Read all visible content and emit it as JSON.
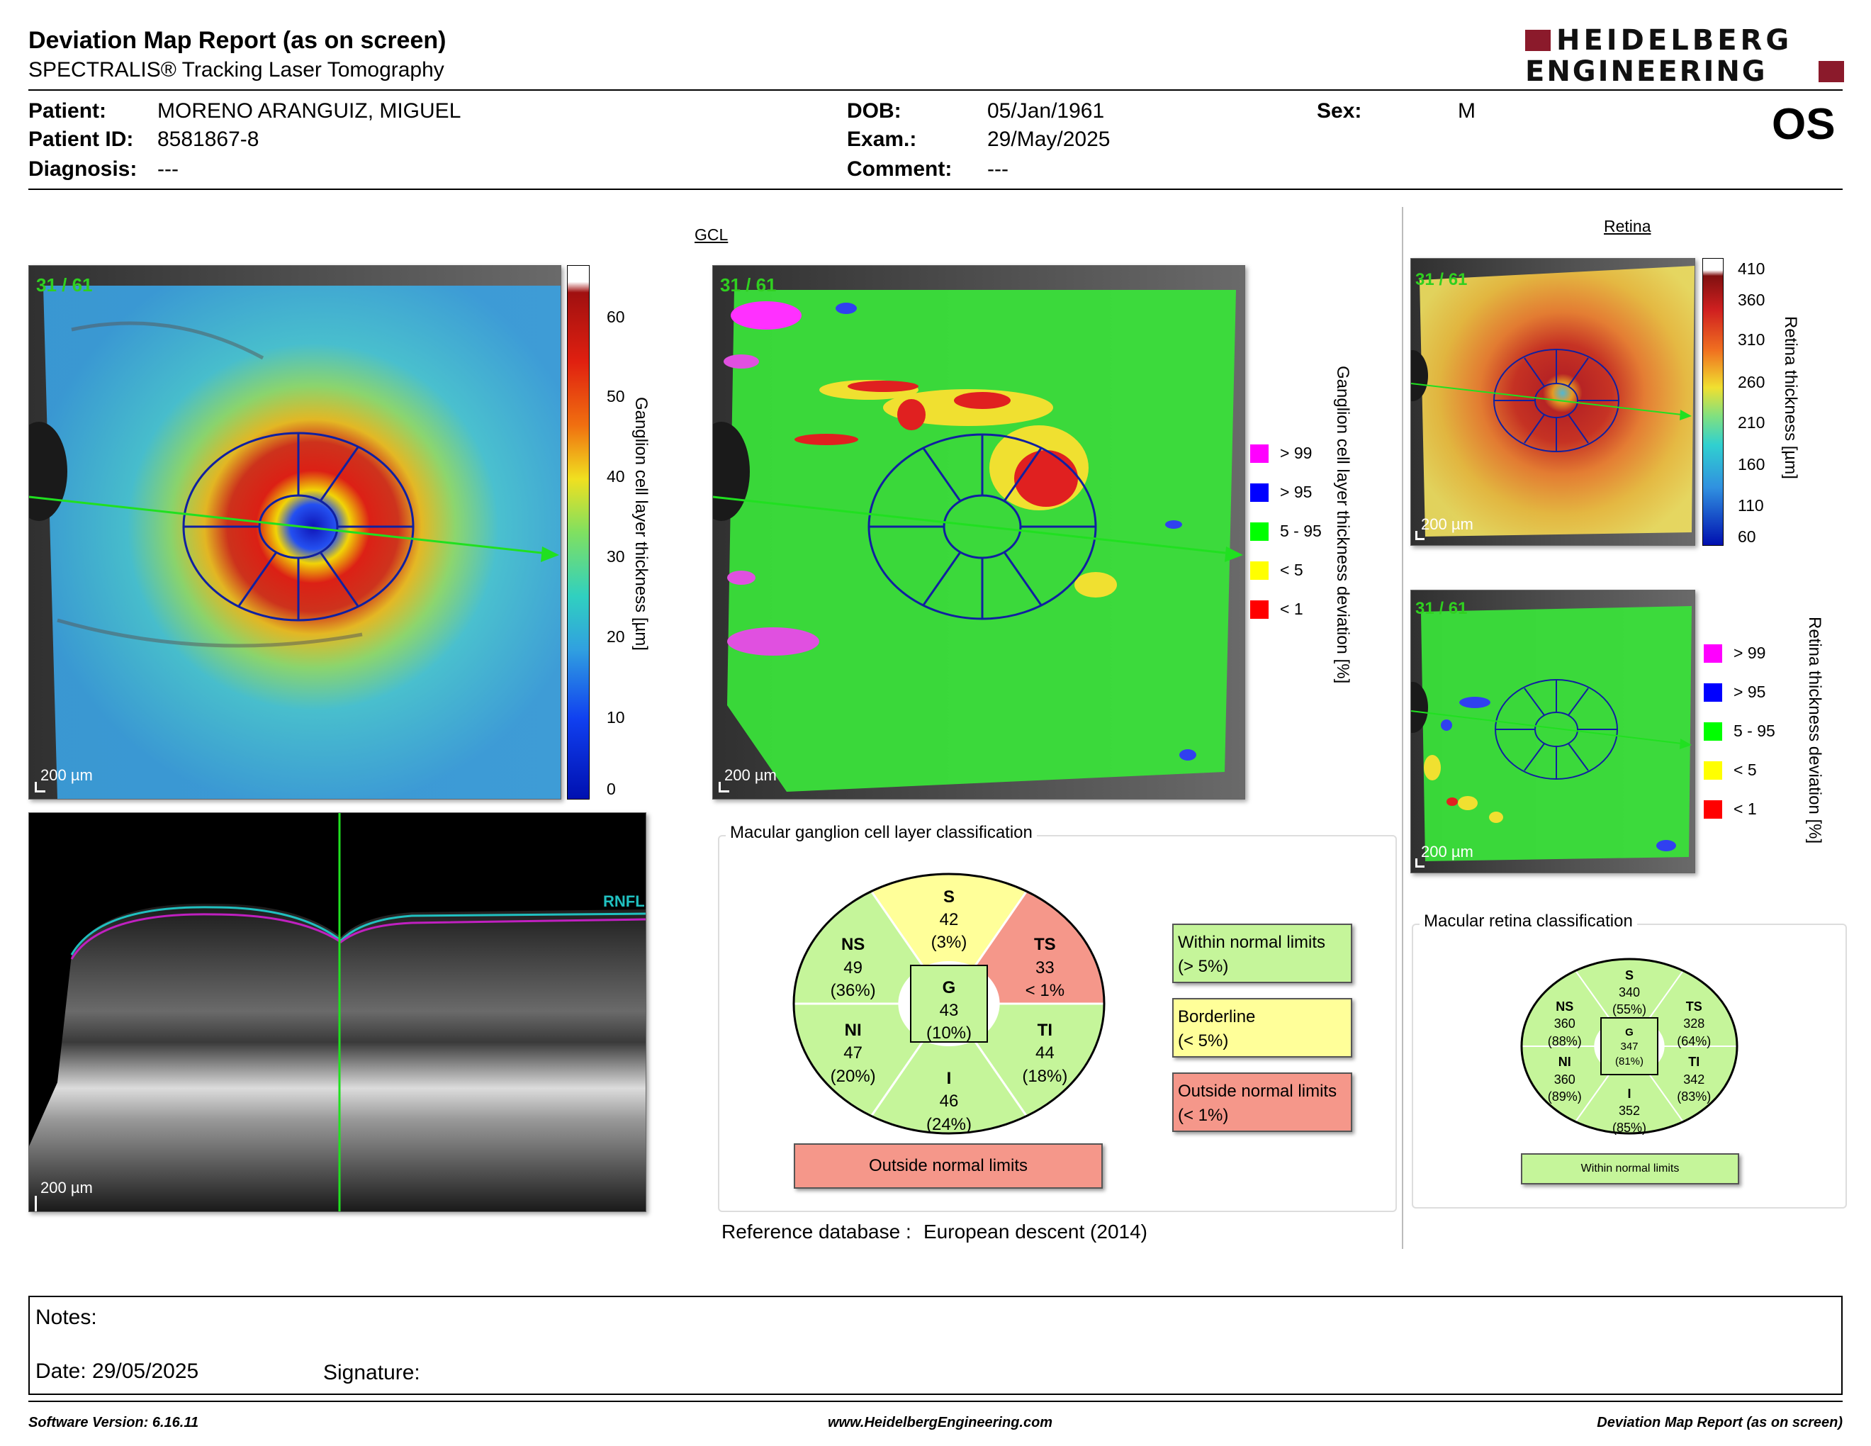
{
  "header": {
    "title": "Deviation Map Report (as on screen)",
    "subtitle": "SPECTRALIS® Tracking Laser Tomography",
    "logo_line1": "HEIDELBERG",
    "logo_line2": "ENGINEERING"
  },
  "patient": {
    "patient_label": "Patient:",
    "patient_value": "MORENO ARANGUIZ, MIGUEL",
    "id_label": "Patient ID:",
    "id_value": "8581867-8",
    "diagnosis_label": "Diagnosis:",
    "diagnosis_value": "---",
    "dob_label": "DOB:",
    "dob_value": "05/Jan/1961",
    "exam_label": "Exam.:",
    "exam_value": "29/May/2025",
    "comment_label": "Comment:",
    "comment_value": "---",
    "sex_label": "Sex:",
    "sex_value": "M",
    "eye": "OS"
  },
  "gcl_section": "GCL",
  "retina_section": "Retina",
  "scan_index": "31 / 61",
  "scale_text": "200 µm",
  "rnfl_label": "RNFL",
  "gcl_thickness_scale": {
    "title": "Ganglion cell layer thickness [µm]",
    "ticks": [
      "60",
      "50",
      "40",
      "30",
      "20",
      "10",
      "0"
    ]
  },
  "gcl_deviation_scale": {
    "title": "Ganglion cell layer thickness deviation [%]"
  },
  "retina_thickness_scale": {
    "title": "Retina thickness [µm]",
    "ticks": [
      "410",
      "360",
      "310",
      "260",
      "210",
      "160",
      "110",
      "60"
    ]
  },
  "retina_deviation_scale": {
    "title": "Retina thickness deviation [%]"
  },
  "deviation_legend": [
    {
      "label": "> 99",
      "color": "#ff00ff"
    },
    {
      "label": "> 95",
      "color": "#0000ff"
    },
    {
      "label": "5 - 95",
      "color": "#00ff00"
    },
    {
      "label": "< 5",
      "color": "#ffff00"
    },
    {
      "label": "< 1",
      "color": "#ff0000"
    }
  ],
  "gcl_classification": {
    "title": "Macular ganglion cell layer classification",
    "sectors": {
      "S": {
        "name": "S",
        "value": "42",
        "pct": "(3%)",
        "color": "#ffff99"
      },
      "TS": {
        "name": "TS",
        "value": "33",
        "pct": "< 1%",
        "color": "#f5978a"
      },
      "NS": {
        "name": "NS",
        "value": "49",
        "pct": "(36%)",
        "color": "#c5f59a"
      },
      "NI": {
        "name": "NI",
        "value": "47",
        "pct": "(20%)",
        "color": "#c5f59a"
      },
      "TI": {
        "name": "TI",
        "value": "44",
        "pct": "(18%)",
        "color": "#c5f59a"
      },
      "I": {
        "name": "I",
        "value": "46",
        "pct": "(24%)",
        "color": "#c5f59a"
      },
      "G": {
        "name": "G",
        "value": "43",
        "pct": "(10%)",
        "color": "#c5f59a"
      }
    },
    "result": "Outside normal limits",
    "result_color": "#f5978a"
  },
  "classification_legend": [
    {
      "line1": "Within normal limits",
      "line2": "(> 5%)",
      "color": "#c5f59a"
    },
    {
      "line1": "Borderline",
      "line2": "(< 5%)",
      "color": "#ffff99"
    },
    {
      "line1": "Outside normal limits",
      "line2": "(< 1%)",
      "color": "#f5978a"
    }
  ],
  "retina_classification": {
    "title": "Macular retina classification",
    "sectors": {
      "S": {
        "name": "S",
        "value": "340",
        "pct": "(55%)"
      },
      "TS": {
        "name": "TS",
        "value": "328",
        "pct": "(64%)"
      },
      "NS": {
        "name": "NS",
        "value": "360",
        "pct": "(88%)"
      },
      "NI": {
        "name": "NI",
        "value": "360",
        "pct": "(89%)"
      },
      "TI": {
        "name": "TI",
        "value": "342",
        "pct": "(83%)"
      },
      "I": {
        "name": "I",
        "value": "352",
        "pct": "(85%)"
      },
      "G": {
        "name": "G",
        "value": "347",
        "pct": "(81%)"
      }
    },
    "result": "Within normal limits",
    "result_color": "#c5f59a"
  },
  "reference": {
    "label": "Reference database :",
    "value": "European descent (2014)"
  },
  "notes": {
    "notes_label": "Notes:",
    "date_label": "Date: 29/05/2025",
    "signature_label": "Signature:"
  },
  "footer": {
    "version": "Software Version: 6.16.11",
    "website": "www.HeidelbergEngineering.com",
    "report": "Deviation Map Report (as on screen)"
  }
}
